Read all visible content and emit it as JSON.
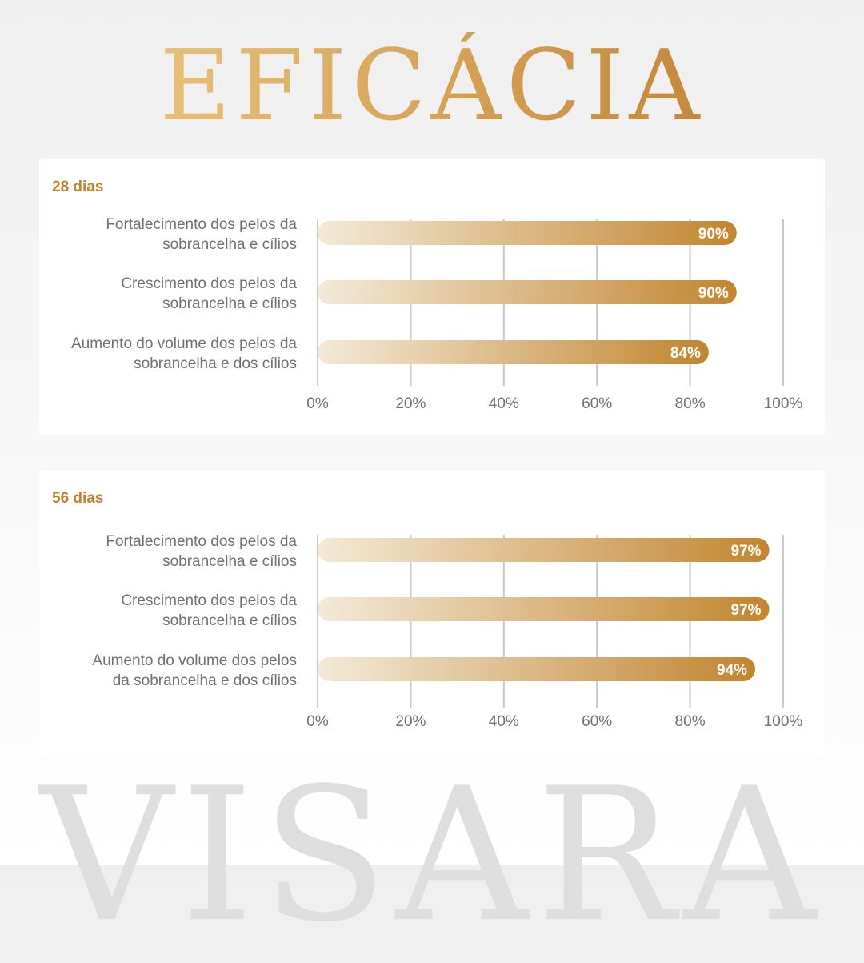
{
  "title": "EFICÁCIA",
  "watermark": "VISARA",
  "colors": {
    "accent": "#c0822e",
    "bar_start": "#f4ead8",
    "bar_end": "#c2852f"
  },
  "chart_data": [
    {
      "type": "bar",
      "orientation": "horizontal",
      "title": "28 dias",
      "categories": [
        [
          "Fortalecimento dos pelos da",
          "sobrancelha e cílios"
        ],
        [
          "Crescimento dos pelos da",
          "sobrancelha e cílios"
        ],
        [
          "Aumento do volume dos pelos da",
          "sobrancelha e dos cílios"
        ]
      ],
      "values": [
        90,
        90,
        84
      ],
      "value_labels": [
        "90%",
        "90%",
        "84%"
      ],
      "xlim": [
        0,
        100
      ],
      "ticks": [
        "0%",
        "20%",
        "40%",
        "60%",
        "80%",
        "100%"
      ],
      "grid": true
    },
    {
      "type": "bar",
      "orientation": "horizontal",
      "title": "56 dias",
      "categories": [
        [
          "Fortalecimento dos pelos da",
          "sobrancelha e cílios"
        ],
        [
          "Crescimento dos pelos da",
          "sobrancelha e cílios"
        ],
        [
          "Aumento do volume dos pelos",
          "da sobrancelha e dos cílios"
        ]
      ],
      "values": [
        97,
        97,
        94
      ],
      "value_labels": [
        "97%",
        "97%",
        "94%"
      ],
      "xlim": [
        0,
        100
      ],
      "ticks": [
        "0%",
        "20%",
        "40%",
        "60%",
        "80%",
        "100%"
      ],
      "grid": true
    }
  ]
}
